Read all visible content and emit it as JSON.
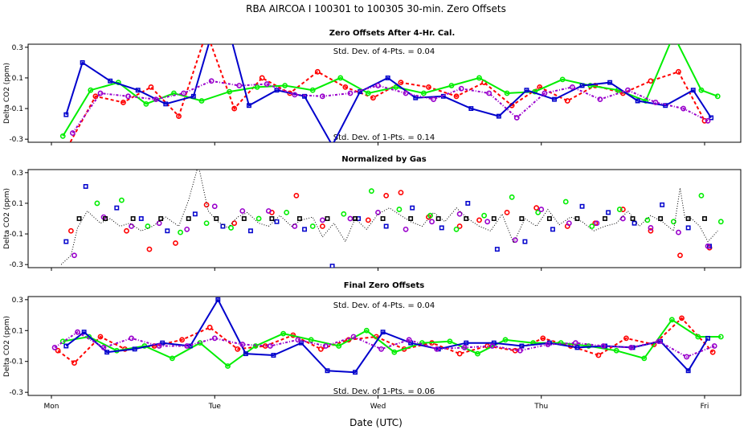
{
  "figure": {
    "title": "RBA   AIRCOA I   100301 to 100305   30-min. Zero Offsets",
    "xlabel": "Date (UTC)",
    "colors": {
      "red": "#ff0000",
      "green": "#00ee00",
      "blue": "#0000cc",
      "purple": "#9900cc",
      "black": "#000000"
    }
  },
  "chart_data": [
    {
      "type": "line",
      "title": "Zero Offsets After 4-Hr. Cal.",
      "ylabel": "Delta CO2 (ppm)",
      "ylim": [
        -0.32,
        0.32
      ],
      "yticks": [
        -0.3,
        -0.1,
        0.1,
        0.3
      ],
      "yticklabels": [
        "-0.3",
        "-0.1",
        "0.1",
        "0.3"
      ],
      "xlim": [
        0,
        4.2
      ],
      "xticks": [
        0,
        1,
        2,
        3,
        4
      ],
      "xticklabels": [
        "Mon",
        "Tue",
        "Wed",
        "Thu",
        "Fri"
      ],
      "xlabel": "",
      "annotations": [
        "Std. Dev. of 4-Pts. =  0.04",
        "Std. Dev. of 1-Pts. =  0.14"
      ],
      "series": [
        {
          "name": "red",
          "x": [
            0.1,
            0.27,
            0.44,
            0.61,
            0.78,
            0.95,
            1.12,
            1.29,
            1.46,
            1.63,
            1.8,
            1.97,
            2.14,
            2.31,
            2.48,
            2.65,
            2.82,
            2.99,
            3.16,
            3.33,
            3.5,
            3.67,
            3.84,
            4.0
          ],
          "y": [
            -0.35,
            -0.02,
            -0.06,
            0.04,
            -0.15,
            0.4,
            -0.1,
            0.1,
            0.0,
            0.14,
            0.04,
            -0.03,
            0.07,
            0.04,
            -0.02,
            0.07,
            -0.08,
            0.04,
            -0.05,
            0.05,
            0.0,
            0.08,
            0.14,
            -0.18
          ]
        },
        {
          "name": "green",
          "x": [
            0.07,
            0.24,
            0.41,
            0.58,
            0.75,
            0.92,
            1.09,
            1.26,
            1.43,
            1.6,
            1.77,
            1.94,
            2.11,
            2.28,
            2.45,
            2.62,
            2.79,
            2.96,
            3.13,
            3.3,
            3.47,
            3.64,
            3.81,
            3.98,
            4.08
          ],
          "y": [
            -0.28,
            0.02,
            0.07,
            -0.07,
            0.0,
            -0.05,
            0.01,
            0.04,
            0.05,
            0.02,
            0.1,
            0.0,
            0.04,
            0.0,
            0.05,
            0.1,
            0.0,
            0.01,
            0.09,
            0.05,
            0.02,
            -0.05,
            0.38,
            0.02,
            -0.02
          ]
        },
        {
          "name": "blue",
          "x": [
            0.09,
            0.19,
            0.36,
            0.53,
            0.7,
            0.87,
            1.04,
            1.21,
            1.38,
            1.55,
            1.72,
            1.89,
            2.06,
            2.23,
            2.4,
            2.57,
            2.74,
            2.91,
            3.08,
            3.25,
            3.42,
            3.59,
            3.76,
            3.93,
            4.04
          ],
          "y": [
            -0.14,
            0.2,
            0.08,
            0.02,
            -0.07,
            -0.02,
            0.6,
            -0.08,
            0.02,
            -0.02,
            -0.34,
            0.01,
            0.1,
            -0.03,
            -0.02,
            -0.1,
            -0.15,
            0.02,
            -0.04,
            0.05,
            0.07,
            -0.05,
            -0.08,
            0.02,
            -0.16
          ]
        },
        {
          "name": "purple",
          "x": [
            0.13,
            0.3,
            0.47,
            0.64,
            0.81,
            0.98,
            1.15,
            1.32,
            1.49,
            1.66,
            1.83,
            2.0,
            2.17,
            2.34,
            2.51,
            2.68,
            2.85,
            3.02,
            3.19,
            3.36,
            3.53,
            3.7,
            3.87,
            4.02
          ],
          "y": [
            -0.26,
            0.0,
            -0.02,
            -0.04,
            0.0,
            0.08,
            0.05,
            0.06,
            -0.01,
            -0.02,
            0.0,
            0.05,
            0.0,
            -0.04,
            0.03,
            0.0,
            -0.16,
            0.0,
            0.04,
            -0.04,
            0.02,
            -0.06,
            -0.1,
            -0.18
          ]
        }
      ]
    },
    {
      "type": "scatter",
      "title": "Normalized by Gas",
      "ylabel": "Delta CO2 (ppm)",
      "ylim": [
        -0.32,
        0.32
      ],
      "yticks": [
        -0.3,
        -0.1,
        0.1,
        0.3
      ],
      "yticklabels": [
        "-0.3",
        "-0.1",
        "0.1",
        "0.3"
      ],
      "xlim": [
        0,
        4.2
      ],
      "xticks": [
        0,
        1,
        2,
        3,
        4
      ],
      "xticklabels": [
        "Mon",
        "Tue",
        "Wed",
        "Thu",
        "Fri"
      ],
      "xlabel": "",
      "annotations": [],
      "series": [
        {
          "name": "red",
          "x": [
            0.12,
            0.46,
            0.6,
            0.76,
            0.95,
            1.12,
            1.35,
            1.5,
            1.66,
            1.94,
            2.05,
            2.14,
            2.31,
            2.5,
            2.62,
            2.79,
            2.97,
            3.16,
            3.33,
            3.5,
            3.67,
            3.85,
            4.03
          ],
          "y": [
            -0.08,
            -0.08,
            -0.2,
            -0.16,
            0.09,
            -0.03,
            0.04,
            0.15,
            -0.05,
            -0.01,
            0.15,
            0.17,
            0.01,
            -0.05,
            -0.01,
            0.04,
            0.07,
            -0.05,
            -0.03,
            0.06,
            -0.08,
            -0.24,
            -0.19
          ]
        },
        {
          "name": "green",
          "x": [
            0.28,
            0.43,
            0.59,
            0.79,
            0.95,
            1.1,
            1.27,
            1.44,
            1.6,
            1.79,
            1.96,
            2.13,
            2.32,
            2.48,
            2.65,
            2.82,
            2.98,
            3.15,
            3.31,
            3.48,
            3.65,
            3.81,
            3.98,
            4.1
          ],
          "y": [
            0.1,
            0.12,
            -0.05,
            -0.09,
            -0.03,
            -0.06,
            0.0,
            0.04,
            -0.05,
            0.03,
            0.18,
            0.06,
            0.02,
            -0.07,
            0.02,
            0.14,
            0.04,
            0.11,
            -0.05,
            0.06,
            -0.01,
            -0.02,
            0.15,
            -0.02
          ]
        },
        {
          "name": "blue",
          "x": [
            0.09,
            0.21,
            0.4,
            0.55,
            0.71,
            0.88,
            1.05,
            1.22,
            1.38,
            1.55,
            1.72,
            1.88,
            2.05,
            2.21,
            2.39,
            2.55,
            2.73,
            2.9,
            3.07,
            3.25,
            3.41,
            3.57,
            3.74,
            3.9,
            4.03
          ],
          "y": [
            -0.15,
            0.21,
            0.07,
            0.0,
            -0.08,
            0.03,
            -0.05,
            -0.08,
            -0.02,
            -0.07,
            -0.31,
            0.0,
            -0.05,
            0.07,
            -0.06,
            0.1,
            -0.2,
            -0.15,
            -0.07,
            0.08,
            0.04,
            -0.03,
            0.09,
            -0.06,
            -0.18
          ]
        },
        {
          "name": "purple",
          "x": [
            0.14,
            0.32,
            0.49,
            0.66,
            0.83,
            1.0,
            1.17,
            1.33,
            1.49,
            1.66,
            1.83,
            2.0,
            2.17,
            2.33,
            2.5,
            2.67,
            2.84,
            3.0,
            3.17,
            3.34,
            3.5,
            3.67,
            3.84,
            4.02
          ],
          "y": [
            -0.24,
            0.01,
            -0.05,
            -0.03,
            -0.07,
            0.08,
            0.05,
            0.05,
            -0.05,
            -0.01,
            0.0,
            0.04,
            -0.07,
            -0.02,
            0.03,
            -0.02,
            -0.14,
            0.06,
            -0.03,
            -0.03,
            0.0,
            -0.06,
            -0.09,
            -0.18
          ]
        },
        {
          "name": "black",
          "x": [
            0.17,
            0.33,
            0.5,
            0.67,
            0.84,
            1.01,
            1.18,
            1.35,
            1.52,
            1.69,
            1.86,
            2.03,
            2.2,
            2.37,
            2.54,
            2.71,
            2.88,
            3.05,
            3.22,
            3.39,
            3.56,
            3.73,
            3.9,
            4.0
          ],
          "y": [
            0.0,
            0.0,
            0.0,
            0.0,
            0.0,
            0.0,
            0.0,
            0.0,
            0.0,
            0.0,
            0.0,
            0.0,
            0.0,
            0.0,
            0.0,
            0.0,
            0.0,
            0.0,
            0.0,
            0.0,
            0.0,
            0.0,
            0.0,
            0.0
          ]
        },
        {
          "name": "normalized",
          "style": "dotted",
          "x": [
            0.06,
            0.12,
            0.16,
            0.22,
            0.3,
            0.36,
            0.42,
            0.48,
            0.55,
            0.62,
            0.7,
            0.78,
            0.84,
            0.9,
            0.96,
            1.02,
            1.08,
            1.14,
            1.2,
            1.27,
            1.33,
            1.4,
            1.47,
            1.53,
            1.6,
            1.66,
            1.73,
            1.8,
            1.86,
            1.93,
            2.0,
            2.07,
            2.14,
            2.2,
            2.27,
            2.34,
            2.41,
            2.48,
            2.55,
            2.62,
            2.69,
            2.76,
            2.83,
            2.9,
            2.97,
            3.04,
            3.11,
            3.18,
            3.25,
            3.32,
            3.39,
            3.46,
            3.53,
            3.6,
            3.67,
            3.74,
            3.81,
            3.85,
            3.88,
            3.92,
            3.97,
            4.02,
            4.08
          ],
          "y": [
            -0.3,
            -0.24,
            -0.06,
            0.05,
            -0.03,
            0.0,
            -0.05,
            -0.03,
            -0.08,
            -0.05,
            0.01,
            -0.05,
            0.12,
            0.35,
            0.05,
            -0.02,
            -0.06,
            0.01,
            0.04,
            -0.03,
            -0.05,
            0.02,
            -0.05,
            -0.01,
            0.01,
            -0.12,
            -0.03,
            -0.15,
            0.0,
            -0.07,
            0.03,
            0.07,
            0.02,
            -0.02,
            -0.05,
            0.04,
            -0.02,
            0.07,
            0.0,
            -0.05,
            -0.08,
            0.03,
            -0.16,
            0.0,
            -0.05,
            0.06,
            -0.04,
            0.01,
            -0.02,
            -0.08,
            -0.05,
            -0.03,
            0.05,
            -0.05,
            0.02,
            -0.02,
            -0.08,
            0.2,
            0.0,
            0.0,
            -0.05,
            -0.15,
            -0.08
          ]
        }
      ]
    },
    {
      "type": "line",
      "title": "Final Zero Offsets",
      "ylabel": "Delta CO2 (ppm)",
      "ylim": [
        -0.32,
        0.32
      ],
      "yticks": [
        -0.3,
        -0.1,
        0.1,
        0.3
      ],
      "yticklabels": [
        "-0.3",
        "-0.1",
        "0.1",
        "0.3"
      ],
      "xlim": [
        0,
        4.2
      ],
      "xticks": [
        0,
        1,
        2,
        3,
        4
      ],
      "xticklabels": [
        "Mon",
        "Tue",
        "Wed",
        "Thu",
        "Fri"
      ],
      "xlabel": "Date (UTC)",
      "annotations": [
        "Std. Dev. of 4-Pts. =  0.04",
        "Std. Dev. of 1-Pts. =  0.06"
      ],
      "series": [
        {
          "name": "red",
          "x": [
            0.04,
            0.14,
            0.3,
            0.45,
            0.63,
            0.8,
            0.97,
            1.14,
            1.31,
            1.48,
            1.65,
            1.82,
            1.99,
            2.16,
            2.33,
            2.5,
            2.67,
            2.84,
            3.01,
            3.18,
            3.35,
            3.52,
            3.69,
            3.86,
            4.05
          ],
          "y": [
            -0.03,
            -0.11,
            0.06,
            -0.02,
            0.0,
            0.04,
            0.12,
            -0.02,
            0.0,
            0.07,
            -0.02,
            0.04,
            0.06,
            -0.02,
            0.02,
            -0.05,
            0.0,
            -0.03,
            0.05,
            0.0,
            -0.06,
            0.05,
            0.01,
            0.18,
            -0.04
          ]
        },
        {
          "name": "green",
          "x": [
            0.07,
            0.23,
            0.4,
            0.57,
            0.74,
            0.91,
            1.08,
            1.25,
            1.42,
            1.59,
            1.76,
            1.93,
            2.1,
            2.27,
            2.44,
            2.61,
            2.78,
            2.95,
            3.12,
            3.29,
            3.46,
            3.63,
            3.8,
            3.96,
            4.1
          ],
          "y": [
            0.03,
            0.06,
            -0.03,
            0.0,
            -0.08,
            0.02,
            -0.13,
            0.0,
            0.08,
            0.04,
            0.0,
            0.1,
            -0.04,
            0.02,
            0.03,
            -0.05,
            0.04,
            0.02,
            0.02,
            0.0,
            -0.03,
            -0.08,
            0.17,
            0.06,
            0.06
          ]
        },
        {
          "name": "blue",
          "x": [
            0.09,
            0.2,
            0.34,
            0.51,
            0.68,
            0.85,
            1.02,
            1.19,
            1.36,
            1.53,
            1.69,
            1.86,
            2.03,
            2.2,
            2.37,
            2.54,
            2.71,
            2.88,
            3.05,
            3.22,
            3.39,
            3.56,
            3.73,
            3.9,
            4.02
          ],
          "y": [
            0.0,
            0.09,
            -0.04,
            -0.02,
            0.02,
            0.0,
            0.3,
            -0.05,
            -0.06,
            0.02,
            -0.16,
            -0.17,
            0.09,
            0.02,
            -0.02,
            0.02,
            0.02,
            0.0,
            0.02,
            -0.01,
            0.0,
            -0.01,
            0.03,
            -0.16,
            0.05
          ]
        },
        {
          "name": "purple",
          "x": [
            0.02,
            0.16,
            0.32,
            0.49,
            0.66,
            0.83,
            1.0,
            1.17,
            1.34,
            1.51,
            1.68,
            1.85,
            2.02,
            2.19,
            2.36,
            2.53,
            2.7,
            2.87,
            3.04,
            3.21,
            3.38,
            3.55,
            3.72,
            3.89,
            4.06
          ],
          "y": [
            -0.01,
            0.09,
            -0.01,
            0.05,
            0.0,
            0.0,
            0.05,
            0.01,
            0.0,
            0.04,
            0.0,
            0.06,
            -0.02,
            0.04,
            -0.02,
            -0.01,
            0.0,
            -0.03,
            0.01,
            0.02,
            0.0,
            -0.01,
            0.03,
            -0.07,
            0.0
          ]
        }
      ]
    }
  ]
}
